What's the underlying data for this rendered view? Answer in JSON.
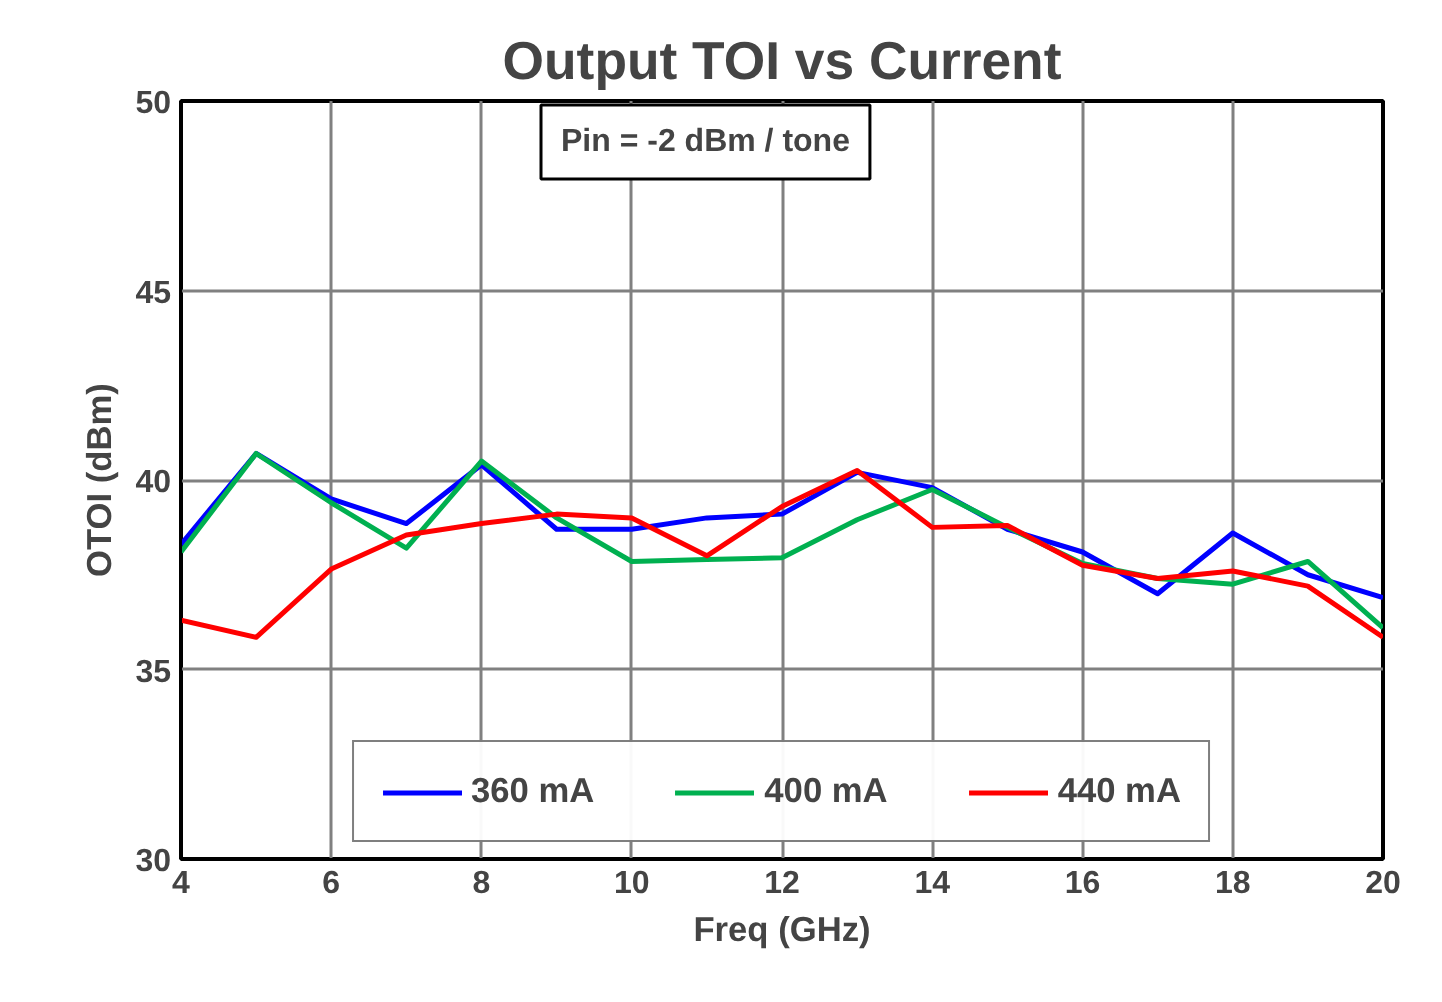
{
  "chart_data": {
    "type": "line",
    "title": "Output TOI vs Current",
    "xlabel": "Freq (GHz)",
    "ylabel": "OTOI (dBm)",
    "annotations": [
      "Pin = -2 dBm / tone"
    ],
    "x": [
      4,
      5,
      6,
      7,
      8,
      9,
      10,
      11,
      12,
      13,
      14,
      15,
      16,
      17,
      18,
      19,
      20
    ],
    "series": [
      {
        "name": "360 mA",
        "color": "#0000ff",
        "values": [
          38.3,
          40.7,
          39.5,
          38.85,
          40.4,
          38.7,
          38.7,
          39.0,
          39.1,
          40.2,
          39.8,
          38.7,
          38.1,
          37.0,
          38.6,
          37.5,
          36.9
        ]
      },
      {
        "name": "400 mA",
        "color": "#00b050",
        "values": [
          38.1,
          40.7,
          39.4,
          38.2,
          40.5,
          39.0,
          37.85,
          37.9,
          37.95,
          38.95,
          39.75,
          38.75,
          37.8,
          37.4,
          37.25,
          37.85,
          36.1
        ]
      },
      {
        "name": "440 mA",
        "color": "#ff0000",
        "values": [
          36.3,
          35.85,
          37.65,
          38.55,
          38.85,
          39.1,
          39.0,
          38.0,
          39.3,
          40.25,
          38.75,
          38.8,
          37.75,
          37.4,
          37.6,
          37.2,
          35.85
        ]
      }
    ],
    "xlim": [
      4,
      20
    ],
    "xticks": [
      4,
      6,
      8,
      10,
      12,
      14,
      16,
      18,
      20
    ],
    "ylim": [
      30,
      50
    ],
    "yticks": [
      30,
      35,
      40,
      45,
      50
    ],
    "grid": true,
    "legend": "bottom",
    "marker": "none",
    "line_style": "solid"
  }
}
